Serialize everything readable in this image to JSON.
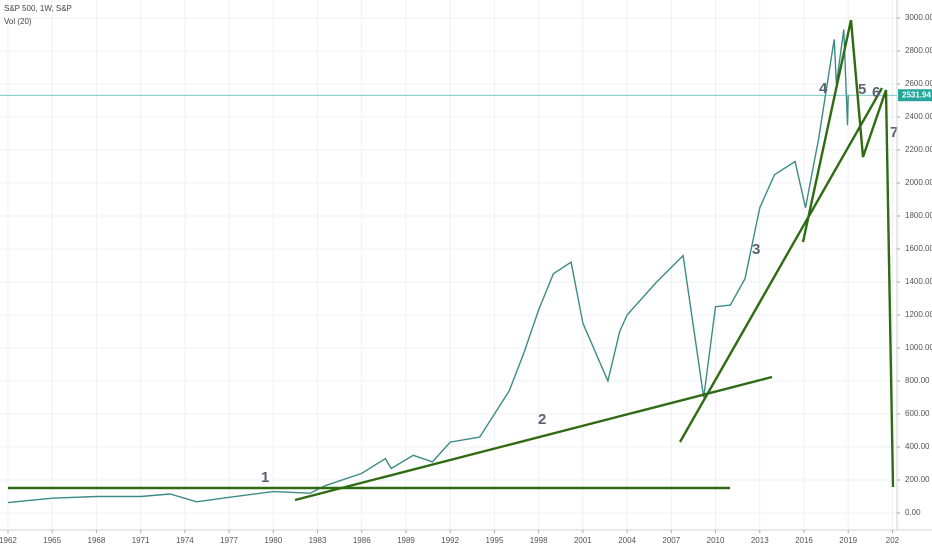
{
  "chart_data": {
    "type": "line",
    "title": "S&P 500, 1W, S&P",
    "subtitle": "Vol (20)",
    "color": "#3d8b86",
    "x": [
      1962,
      1965,
      1968,
      1971,
      1973,
      1974.8,
      1977,
      1980,
      1982.5,
      1983.5,
      1986,
      1987.6,
      1988,
      1989.5,
      1990.8,
      1992,
      1994,
      1995,
      1996,
      1997,
      1998,
      1999,
      2000.2,
      2001,
      2002.7,
      2003.5,
      2004,
      2006,
      2007.8,
      2009.2,
      2010,
      2011,
      2012,
      2013,
      2014,
      2015.4,
      2016.1,
      2017,
      2018.05,
      2018.2,
      2018.7,
      2018.95,
      2019
    ],
    "values": [
      63,
      90,
      100,
      100,
      115,
      68,
      95,
      130,
      120,
      165,
      240,
      330,
      270,
      350,
      310,
      430,
      460,
      600,
      740,
      970,
      1230,
      1450,
      1520,
      1150,
      800,
      1100,
      1200,
      1400,
      1560,
      700,
      1250,
      1260,
      1420,
      1850,
      2050,
      2130,
      1850,
      2270,
      2870,
      2600,
      2930,
      2350,
      2531.94
    ],
    "last_price": 2531.94,
    "xlim": [
      1961.46,
      2022.31
    ],
    "ylim": [
      -103,
      3109
    ],
    "xticks": [
      1962,
      1965,
      1968,
      1971,
      1974,
      1977,
      1980,
      1983,
      1986,
      1989,
      1992,
      1995,
      1998,
      2001,
      2004,
      2007,
      2010,
      2013,
      2016,
      2019,
      {
        "value": 2022,
        "label": "202"
      }
    ],
    "yticks": [
      {
        "value": 0,
        "label": "0.00"
      },
      {
        "value": 200,
        "label": "200.00"
      },
      {
        "value": 400,
        "label": "400.00"
      },
      {
        "value": 600,
        "label": "600.00"
      },
      {
        "value": 800,
        "label": "800.00"
      },
      {
        "value": 1000,
        "label": "1000.00"
      },
      {
        "value": 1200,
        "label": "1200.00"
      },
      {
        "value": 1400,
        "label": "1400.00"
      },
      {
        "value": 1600,
        "label": "1600.00"
      },
      {
        "value": 1800,
        "label": "1800.00"
      },
      {
        "value": 2000,
        "label": "2000.00"
      },
      {
        "value": 2200,
        "label": "2200.00"
      },
      {
        "value": 2400,
        "label": "2400.00"
      },
      {
        "value": 2600,
        "label": "2600.00"
      },
      {
        "value": 2800,
        "label": "2800.00"
      },
      {
        "value": 3000,
        "label": "3000.00"
      }
    ],
    "grid": true,
    "annotations": [
      "1",
      "2",
      "3",
      "4",
      "5",
      "6",
      "7"
    ]
  }
}
